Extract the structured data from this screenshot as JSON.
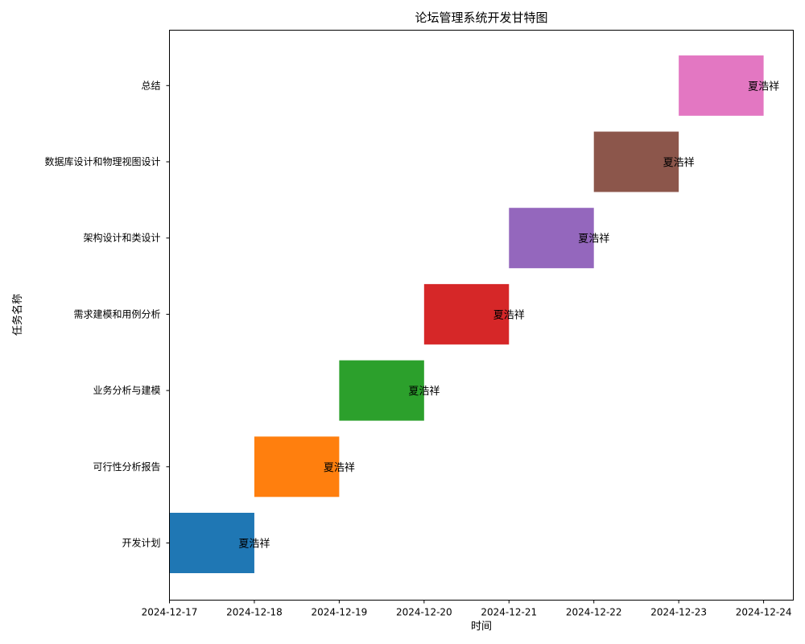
{
  "chart_data": {
    "type": "bar",
    "orientation": "horizontal-gantt",
    "title": "论坛管理系统开发甘特图",
    "xlabel": "时间",
    "ylabel": "任务名称",
    "x_ticks": [
      "2024-12-17",
      "2024-12-18",
      "2024-12-19",
      "2024-12-20",
      "2024-12-21",
      "2024-12-22",
      "2024-12-23",
      "2024-12-24"
    ],
    "xlim": [
      "2024-12-17",
      "2024-12-24.35"
    ],
    "grid": false,
    "legend": "none",
    "tasks": [
      {
        "name": "开发计划",
        "start": "2024-12-17",
        "end": "2024-12-18",
        "label": "夏浩祥",
        "color": "#1f77b4"
      },
      {
        "name": "可行性分析报告",
        "start": "2024-12-18",
        "end": "2024-12-19",
        "label": "夏浩祥",
        "color": "#ff7f0e"
      },
      {
        "name": "业务分析与建模",
        "start": "2024-12-19",
        "end": "2024-12-20",
        "label": "夏浩祥",
        "color": "#2ca02c"
      },
      {
        "name": "需求建模和用例分析",
        "start": "2024-12-20",
        "end": "2024-12-21",
        "label": "夏浩祥",
        "color": "#d62728"
      },
      {
        "name": "架构设计和类设计",
        "start": "2024-12-21",
        "end": "2024-12-22",
        "label": "夏浩祥",
        "color": "#9467bd"
      },
      {
        "name": "数据库设计和物理视图设计",
        "start": "2024-12-22",
        "end": "2024-12-23",
        "label": "夏浩祥",
        "color": "#8c564b"
      },
      {
        "name": "总结",
        "start": "2024-12-23",
        "end": "2024-12-24",
        "label": "夏浩祥",
        "color": "#e377c2"
      }
    ]
  }
}
